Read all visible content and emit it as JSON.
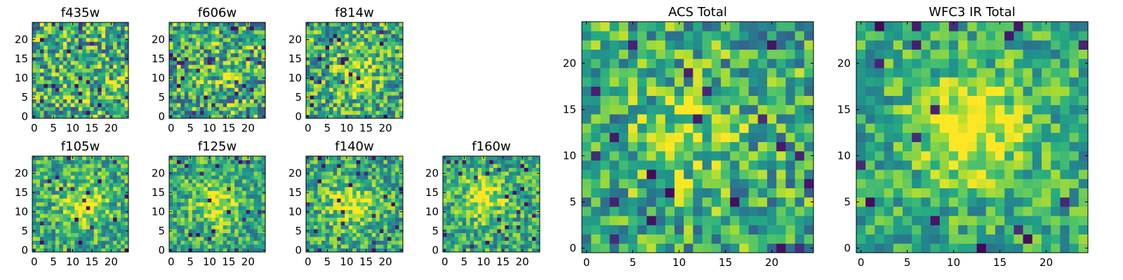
{
  "figure": {
    "background": "#ffffff",
    "colormap": "viridis"
  },
  "chart_data": [
    {
      "type": "heatmap",
      "title": "f435w",
      "grid_size": 25,
      "xlim": [
        0,
        24
      ],
      "ylim": [
        0,
        24
      ],
      "xticks": [
        "0",
        "5",
        "10",
        "15",
        "20"
      ],
      "yticks": [
        "0",
        "5",
        "10",
        "15",
        "20"
      ],
      "blob": {
        "center": [
          14,
          7
        ],
        "strength": 0.05
      },
      "noise": 0.55,
      "seed": 11
    },
    {
      "type": "heatmap",
      "title": "f606w",
      "grid_size": 25,
      "xlim": [
        0,
        24
      ],
      "ylim": [
        0,
        24
      ],
      "xticks": [
        "0",
        "5",
        "10",
        "15",
        "20"
      ],
      "yticks": [
        "0",
        "5",
        "10",
        "15",
        "20"
      ],
      "blob": {
        "center": [
          12,
          11
        ],
        "strength": 0.1
      },
      "noise": 0.55,
      "seed": 23
    },
    {
      "type": "heatmap",
      "title": "f814w",
      "grid_size": 25,
      "xlim": [
        0,
        24
      ],
      "ylim": [
        0,
        24
      ],
      "xticks": [
        "0",
        "5",
        "10",
        "15",
        "20"
      ],
      "yticks": [
        "0",
        "5",
        "10",
        "15",
        "20"
      ],
      "blob": {
        "center": [
          12,
          12
        ],
        "strength": 0.25
      },
      "noise": 0.5,
      "seed": 37
    },
    {
      "type": "heatmap",
      "title": "f105w",
      "grid_size": 25,
      "xlim": [
        0,
        24
      ],
      "ylim": [
        0,
        24
      ],
      "xticks": [
        "0",
        "5",
        "10",
        "15",
        "20"
      ],
      "yticks": [
        "0",
        "5",
        "10",
        "15",
        "20"
      ],
      "blob": {
        "center": [
          13,
          12
        ],
        "strength": 0.35
      },
      "noise": 0.4,
      "seed": 41
    },
    {
      "type": "heatmap",
      "title": "f125w",
      "grid_size": 25,
      "xlim": [
        0,
        24
      ],
      "ylim": [
        0,
        24
      ],
      "xticks": [
        "0",
        "5",
        "10",
        "15",
        "20"
      ],
      "yticks": [
        "0",
        "5",
        "10",
        "15",
        "20"
      ],
      "blob": {
        "center": [
          12,
          12
        ],
        "strength": 0.35
      },
      "noise": 0.4,
      "seed": 53
    },
    {
      "type": "heatmap",
      "title": "f140w",
      "grid_size": 25,
      "xlim": [
        0,
        24
      ],
      "ylim": [
        0,
        24
      ],
      "xticks": [
        "0",
        "5",
        "10",
        "15",
        "20"
      ],
      "yticks": [
        "0",
        "5",
        "10",
        "15",
        "20"
      ],
      "blob": {
        "center": [
          11,
          12
        ],
        "strength": 0.35
      },
      "noise": 0.4,
      "seed": 67
    },
    {
      "type": "heatmap",
      "title": "f160w",
      "grid_size": 25,
      "xlim": [
        0,
        24
      ],
      "ylim": [
        0,
        24
      ],
      "xticks": [
        "0",
        "5",
        "10",
        "15",
        "20"
      ],
      "yticks": [
        "0",
        "5",
        "10",
        "15",
        "20"
      ],
      "blob": {
        "center": [
          10,
          14
        ],
        "strength": 0.35
      },
      "noise": 0.4,
      "seed": 71
    },
    {
      "type": "heatmap",
      "title": "ACS Total",
      "grid_size": 25,
      "xlim": [
        0,
        24
      ],
      "ylim": [
        0,
        24
      ],
      "xticks": [
        "0",
        "5",
        "10",
        "15",
        "20"
      ],
      "yticks": [
        "0",
        "5",
        "10",
        "15",
        "20"
      ],
      "blob": {
        "center": [
          11,
          12
        ],
        "strength": 0.2
      },
      "noise": 0.45,
      "seed": 83
    },
    {
      "type": "heatmap",
      "title": "WFC3 IR Total",
      "grid_size": 25,
      "xlim": [
        0,
        24
      ],
      "ylim": [
        0,
        24
      ],
      "xticks": [
        "0",
        "5",
        "10",
        "15",
        "20"
      ],
      "yticks": [
        "0",
        "5",
        "10",
        "15",
        "20"
      ],
      "blob": {
        "center": [
          12,
          13
        ],
        "strength": 0.45
      },
      "noise": 0.35,
      "seed": 97
    }
  ]
}
